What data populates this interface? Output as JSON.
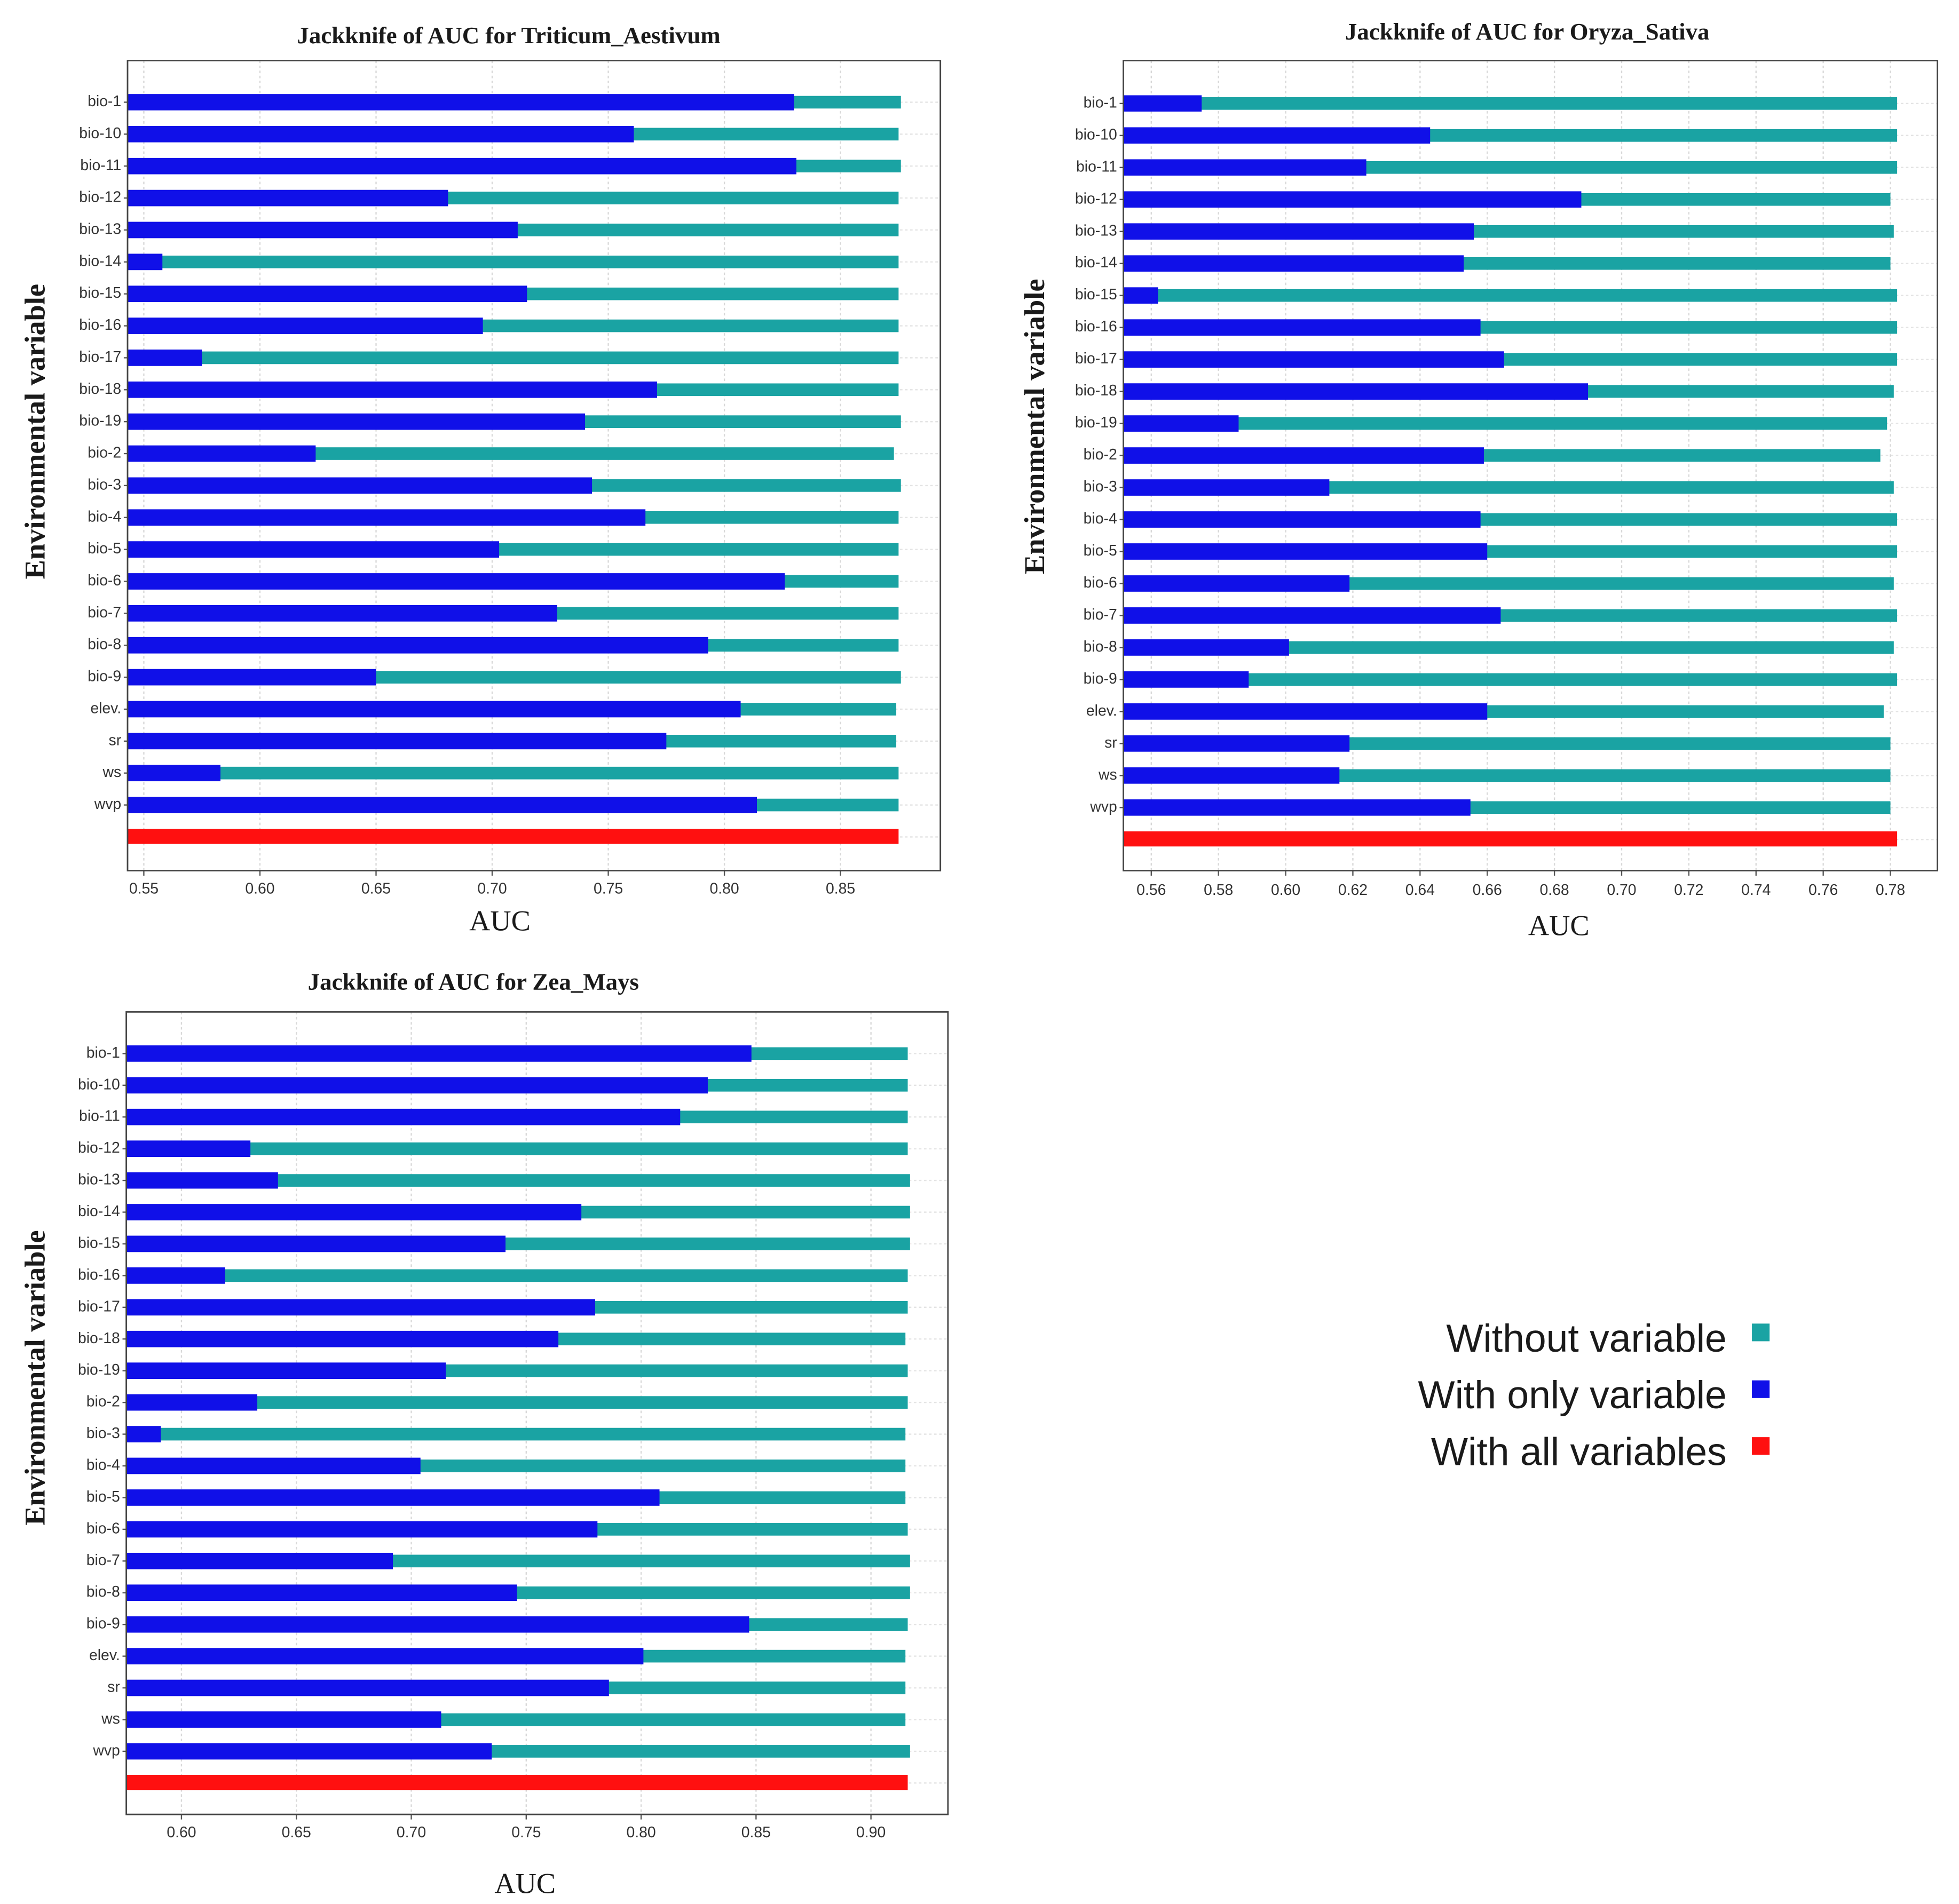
{
  "chart_data": [
    {
      "type": "bar",
      "title": "Jackknife of AUC for Triticum_Aestivum",
      "x_label": "AUC",
      "y_label": "Environmental variable",
      "categories": [
        "bio-1",
        "bio-10",
        "bio-11",
        "bio-12",
        "bio-13",
        "bio-14",
        "bio-15",
        "bio-16",
        "bio-17",
        "bio-18",
        "bio-19",
        "bio-2",
        "bio-3",
        "bio-4",
        "bio-5",
        "bio-6",
        "bio-7",
        "bio-8",
        "bio-9",
        "elev.",
        "sr",
        "ws",
        "wvp"
      ],
      "series": [
        {
          "values": [
            0.876,
            0.875,
            0.876,
            0.875,
            0.875,
            0.875,
            0.875,
            0.875,
            0.875,
            0.875,
            0.876,
            0.873,
            0.876,
            0.875,
            0.875,
            0.875,
            0.875,
            0.875,
            0.876,
            0.874,
            0.874,
            0.875,
            0.875
          ]
        },
        {
          "values": [
            0.83,
            0.761,
            0.831,
            0.681,
            0.711,
            0.558,
            0.715,
            0.696,
            0.575,
            0.771,
            0.74,
            0.624,
            0.743,
            0.766,
            0.703,
            0.826,
            0.728,
            0.793,
            0.65,
            0.807,
            0.775,
            0.583,
            0.814
          ]
        }
      ],
      "all_value": 0.875,
      "xlim": [
        0.543,
        0.893
      ],
      "xticks": [
        0.55,
        {
          "value": 0.6,
          "label": "0.60"
        },
        0.65,
        {
          "value": 0.7,
          "label": "0.70"
        },
        0.75,
        {
          "value": 0.8,
          "label": "0.80"
        },
        0.85
      ],
      "grid": true
    },
    {
      "type": "bar",
      "title": "Jackknife of AUC for Oryza_Sativa",
      "x_label": "AUC",
      "y_label": "Environmental variable",
      "categories": [
        "bio-1",
        "bio-10",
        "bio-11",
        "bio-12",
        "bio-13",
        "bio-14",
        "bio-15",
        "bio-16",
        "bio-17",
        "bio-18",
        "bio-19",
        "bio-2",
        "bio-3",
        "bio-4",
        "bio-5",
        "bio-6",
        "bio-7",
        "bio-8",
        "bio-9",
        "elev.",
        "sr",
        "ws",
        "wvp"
      ],
      "series": [
        {
          "values": [
            0.782,
            0.782,
            0.782,
            0.78,
            0.781,
            0.78,
            0.782,
            0.782,
            0.782,
            0.781,
            0.779,
            0.777,
            0.781,
            0.782,
            0.782,
            0.781,
            0.782,
            0.781,
            0.782,
            0.778,
            0.78,
            0.78,
            0.78
          ]
        },
        {
          "values": [
            0.575,
            0.643,
            0.624,
            0.688,
            0.656,
            0.653,
            0.562,
            0.658,
            0.665,
            0.69,
            0.586,
            0.659,
            0.613,
            0.658,
            0.66,
            0.619,
            0.664,
            0.601,
            0.589,
            0.66,
            0.619,
            0.616,
            0.655
          ]
        }
      ],
      "all_value": 0.782,
      "xlim": [
        0.5517,
        0.794
      ],
      "xticks": [
        0.56,
        0.58,
        {
          "value": 0.6,
          "label": "0.60"
        },
        0.62,
        0.64,
        0.66,
        0.68,
        {
          "value": 0.7,
          "label": "0.70"
        },
        0.72,
        0.74,
        0.76,
        0.78
      ],
      "grid": true
    },
    {
      "type": "bar",
      "title": "Jackknife of AUC for Zea_Mays",
      "x_label": "AUC",
      "y_label": "Environmental variable",
      "categories": [
        "bio-1",
        "bio-10",
        "bio-11",
        "bio-12",
        "bio-13",
        "bio-14",
        "bio-15",
        "bio-16",
        "bio-17",
        "bio-18",
        "bio-19",
        "bio-2",
        "bio-3",
        "bio-4",
        "bio-5",
        "bio-6",
        "bio-7",
        "bio-8",
        "bio-9",
        "elev.",
        "sr",
        "ws",
        "wvp"
      ],
      "series": [
        {
          "values": [
            0.916,
            0.916,
            0.916,
            0.916,
            0.917,
            0.917,
            0.917,
            0.916,
            0.916,
            0.915,
            0.916,
            0.916,
            0.915,
            0.915,
            0.915,
            0.916,
            0.917,
            0.917,
            0.916,
            0.915,
            0.915,
            0.915,
            0.917
          ]
        },
        {
          "values": [
            0.848,
            0.829,
            0.817,
            0.63,
            0.642,
            0.774,
            0.741,
            0.619,
            0.78,
            0.764,
            0.715,
            0.633,
            0.591,
            0.704,
            0.808,
            0.781,
            0.692,
            0.746,
            0.847,
            0.801,
            0.786,
            0.713,
            0.735
          ]
        }
      ],
      "all_value": 0.916,
      "xlim": [
        0.576,
        0.9335
      ],
      "xticks": [
        {
          "value": 0.6,
          "label": "0.60"
        },
        0.65,
        {
          "value": 0.7,
          "label": "0.70"
        },
        0.75,
        {
          "value": 0.8,
          "label": "0.80"
        },
        0.85,
        {
          "value": 0.9,
          "label": "0.90"
        }
      ],
      "grid": true
    }
  ],
  "legend": {
    "items": [
      {
        "name": "Without variable",
        "color": "#1aa3a3"
      },
      {
        "name": "With only variable",
        "color": "#1010e8"
      },
      {
        "name": "With all variables",
        "color": "#ff1010"
      }
    ]
  }
}
